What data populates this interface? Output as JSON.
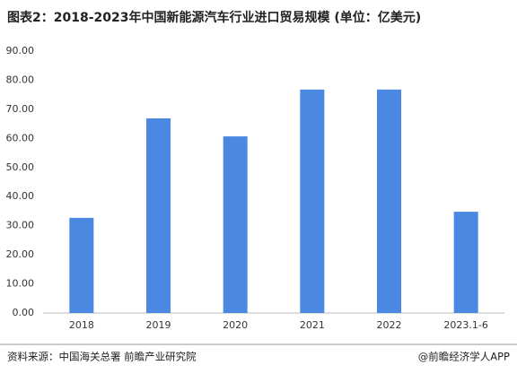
{
  "chart_data": {
    "type": "bar",
    "title": "图表2：2018-2023年中国新能源汽车行业进口贸易规模 (单位：亿美元)",
    "categories": [
      "2018",
      "2019",
      "2020",
      "2021",
      "2022",
      "2023.1-6"
    ],
    "values": [
      32.7,
      66.9,
      60.7,
      76.8,
      76.8,
      34.8
    ],
    "color": "#4a88e2",
    "ylim": [
      0,
      90
    ],
    "yticks": [
      {
        "value": 0,
        "label": "0.00"
      },
      {
        "value": 10,
        "label": "10.00"
      },
      {
        "value": 20,
        "label": "20.00"
      },
      {
        "value": 30,
        "label": "30.00"
      },
      {
        "value": 40,
        "label": "40.00"
      },
      {
        "value": 50,
        "label": "50.00"
      },
      {
        "value": 60,
        "label": "60.00"
      },
      {
        "value": 70,
        "label": "70.00"
      },
      {
        "value": 80,
        "label": "80.00"
      },
      {
        "value": 90,
        "label": "90.00"
      }
    ],
    "grid": false,
    "source": "资料来源：中国海关总署 前瞻产业研究院",
    "credit": "@前瞻经济学人APP"
  }
}
